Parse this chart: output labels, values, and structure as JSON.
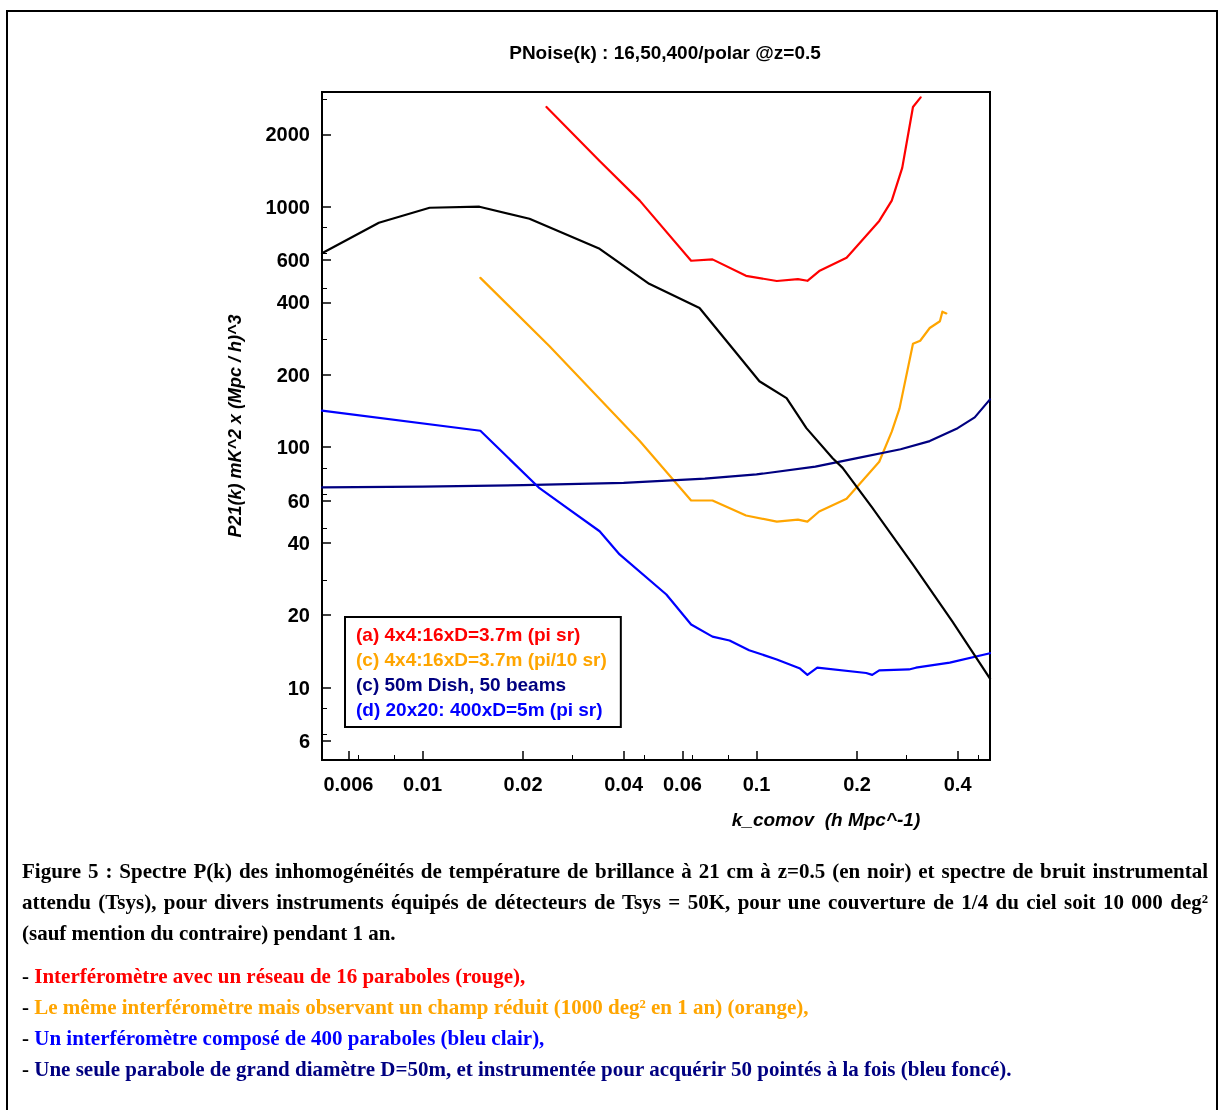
{
  "chart_data": {
    "type": "line",
    "title": "PNoise(k) : 16,50,400/polar @z=0.5",
    "xlabel": "k_comov  (h Mpc^-1)",
    "ylabel": "P21(k) mK^2 x (Mpc / h)^3",
    "log": "xy",
    "xlim": [
      0.005,
      0.5
    ],
    "ylim": [
      5,
      3000
    ],
    "xticks": [
      0.006,
      0.01,
      0.02,
      0.04,
      0.06,
      0.1,
      0.2,
      0.4
    ],
    "yticks": [
      6,
      10,
      20,
      40,
      60,
      100,
      200,
      400,
      600,
      1000,
      2000
    ],
    "grid": false,
    "legend": "bottom left",
    "marker": "none",
    "line_style": "solid",
    "series": [
      {
        "name": "(a) 4x4:16xD=3.7m (pi sr)",
        "color": "#ff0000",
        "x": [
          0.0235,
          0.0339,
          0.0447,
          0.0637,
          0.0738,
          0.093,
          0.115,
          0.133,
          0.142,
          0.154,
          0.186,
          0.233,
          0.254,
          0.273,
          0.294,
          0.31
        ],
        "values": [
          2600,
          1550,
          1060,
          596,
          604,
          516,
          491,
          500,
          492,
          540,
          613,
          873,
          1060,
          1450,
          2600,
          2850
        ]
      },
      {
        "name": "(c) 4x4:16xD=3.7m (pi/10 sr)",
        "color": "#ffa500",
        "x": [
          0.0149,
          0.024,
          0.0447,
          0.0637,
          0.0738,
          0.093,
          0.115,
          0.133,
          0.142,
          0.154,
          0.186,
          0.233,
          0.254,
          0.268,
          0.294,
          0.309,
          0.33,
          0.354,
          0.36,
          0.37
        ],
        "values": [
          506,
          263,
          106,
          60,
          60,
          52,
          49,
          50,
          49,
          54,
          61,
          87,
          116,
          145,
          269,
          277,
          313,
          334,
          366,
          360
        ]
      },
      {
        "name": "(c) 50m Dish, 50 beams",
        "color": "#000080",
        "x": [
          0.005,
          0.01,
          0.02,
          0.04,
          0.07,
          0.1,
          0.15,
          0.2,
          0.27,
          0.33,
          0.4,
          0.45,
          0.5
        ],
        "values": [
          68,
          68.5,
          69.5,
          71,
          74,
          77,
          83,
          90,
          98,
          106,
          120,
          133,
          158
        ]
      },
      {
        "name": "(d) 20x20: 400xD=5m (pi sr)",
        "color": "#0000ff",
        "x": [
          0.005,
          0.0149,
          0.0224,
          0.0339,
          0.0389,
          0.0537,
          0.0637,
          0.0738,
          0.083,
          0.095,
          0.115,
          0.135,
          0.142,
          0.152,
          0.213,
          0.222,
          0.233,
          0.286,
          0.3,
          0.379,
          0.5
        ],
        "values": [
          142,
          117,
          67.5,
          44.7,
          35.8,
          24.4,
          18.3,
          16.3,
          15.7,
          14.3,
          13.1,
          12,
          11.3,
          12.1,
          11.5,
          11.3,
          11.8,
          11.9,
          12.1,
          12.7,
          13.9
        ]
      },
      {
        "color": "#000000",
        "x": [
          0.005,
          0.0074,
          0.0105,
          0.0148,
          0.0209,
          0.0339,
          0.0477,
          0.0675,
          0.0847,
          0.102,
          0.123,
          0.141,
          0.169,
          0.181,
          0.222,
          0.294,
          0.386,
          0.5
        ],
        "values": [
          640,
          858,
          990,
          1000,
          891,
          668,
          478,
          379,
          258,
          188,
          160,
          120,
          90,
          82,
          56,
          32.5,
          18.8,
          10.9
        ]
      }
    ],
    "annotations": [
      "Figure 5 : Spectre P(k) des inhomogénéités de température de brillance à 21 cm à z=0.5 (en noir) et spectre de bruit instrumental attendu (Tsys), pour divers instruments  équipés de détecteurs de Tsys = 50K, pour une couverture de 1/4 du ciel soit 10 000 deg² (sauf mention du contraire) pendant 1 an.",
      "- Interféromètre avec un réseau de 16 paraboles (rouge),",
      "- Le même interféromètre mais observant un champ réduit  (1000 deg² en 1 an)  (orange),",
      "- Un interféromètre composé de 400 paraboles (bleu clair),",
      "- Une seule parabole de grand diamètre D=50m, et  instrumentée pour acquérir 50 pointés à la fois (bleu foncé)."
    ]
  }
}
